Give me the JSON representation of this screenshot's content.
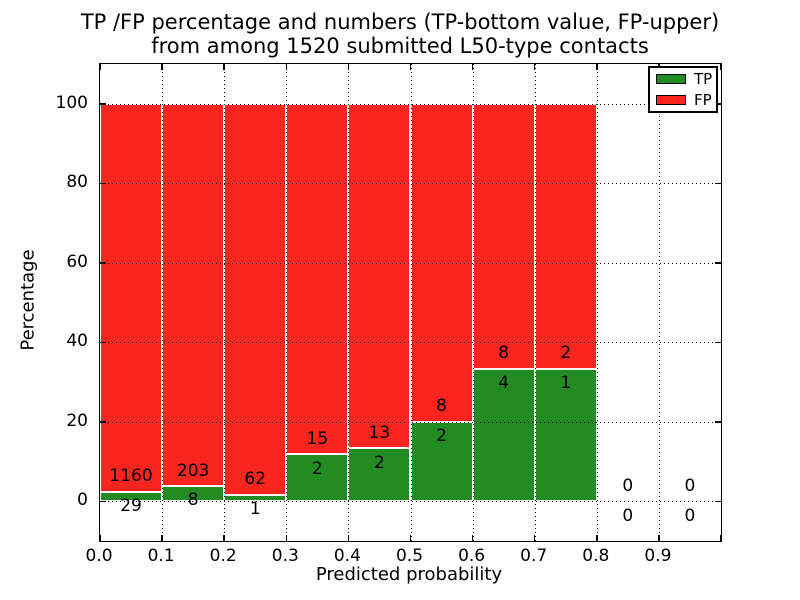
{
  "title": {
    "line1": "TP /FP percentage and numbers (TP-bottom value, FP-upper)",
    "line2": "from among 1520 submitted L50-type contacts"
  },
  "axes": {
    "xlabel": "Predicted probability",
    "ylabel": "Percentage"
  },
  "legend": {
    "items": [
      {
        "label": "TP",
        "color": "#228B22"
      },
      {
        "label": "FP",
        "color": "#FA251F"
      }
    ]
  },
  "chart_data": {
    "type": "bar",
    "stacked": true,
    "title": "TP /FP percentage and numbers (TP-bottom value, FP-upper) from among 1520 submitted L50-type contacts",
    "xlabel": "Predicted probability",
    "ylabel": "Percentage",
    "xlim": [
      0.0,
      1.0
    ],
    "ylim": [
      -10,
      110
    ],
    "grid": true,
    "legend_position": "upper right",
    "total_contacts": 1520,
    "bin_width": 0.1,
    "x_ticks": [
      0.0,
      0.1,
      0.2,
      0.3,
      0.4,
      0.5,
      0.6,
      0.7,
      0.8,
      0.9
    ],
    "x_tick_labels": [
      "0.0",
      "0.1",
      "0.2",
      "0.3",
      "0.4",
      "0.5",
      "0.6",
      "0.7",
      "0.8",
      "0.9"
    ],
    "y_ticks": [
      0,
      20,
      40,
      60,
      80,
      100
    ],
    "series": [
      {
        "name": "TP",
        "color": "#228B22"
      },
      {
        "name": "FP",
        "color": "#FA251F"
      }
    ],
    "bins": [
      {
        "x_start": 0.0,
        "tp": 29,
        "fp": 1160,
        "tp_pct": 2.44,
        "fp_pct": 97.56
      },
      {
        "x_start": 0.1,
        "tp": 8,
        "fp": 203,
        "tp_pct": 3.79,
        "fp_pct": 96.21
      },
      {
        "x_start": 0.2,
        "tp": 1,
        "fp": 62,
        "tp_pct": 1.59,
        "fp_pct": 98.41
      },
      {
        "x_start": 0.3,
        "tp": 2,
        "fp": 15,
        "tp_pct": 11.76,
        "fp_pct": 88.24
      },
      {
        "x_start": 0.4,
        "tp": 2,
        "fp": 13,
        "tp_pct": 13.33,
        "fp_pct": 86.67
      },
      {
        "x_start": 0.5,
        "tp": 2,
        "fp": 8,
        "tp_pct": 20.0,
        "fp_pct": 80.0
      },
      {
        "x_start": 0.6,
        "tp": 4,
        "fp": 8,
        "tp_pct": 33.33,
        "fp_pct": 66.67
      },
      {
        "x_start": 0.7,
        "tp": 1,
        "fp": 2,
        "tp_pct": 33.33,
        "fp_pct": 66.67
      },
      {
        "x_start": 0.8,
        "tp": 0,
        "fp": 0,
        "tp_pct": 0.0,
        "fp_pct": 0.0
      },
      {
        "x_start": 0.9,
        "tp": 0,
        "fp": 0,
        "tp_pct": 0.0,
        "fp_pct": 0.0
      }
    ]
  }
}
